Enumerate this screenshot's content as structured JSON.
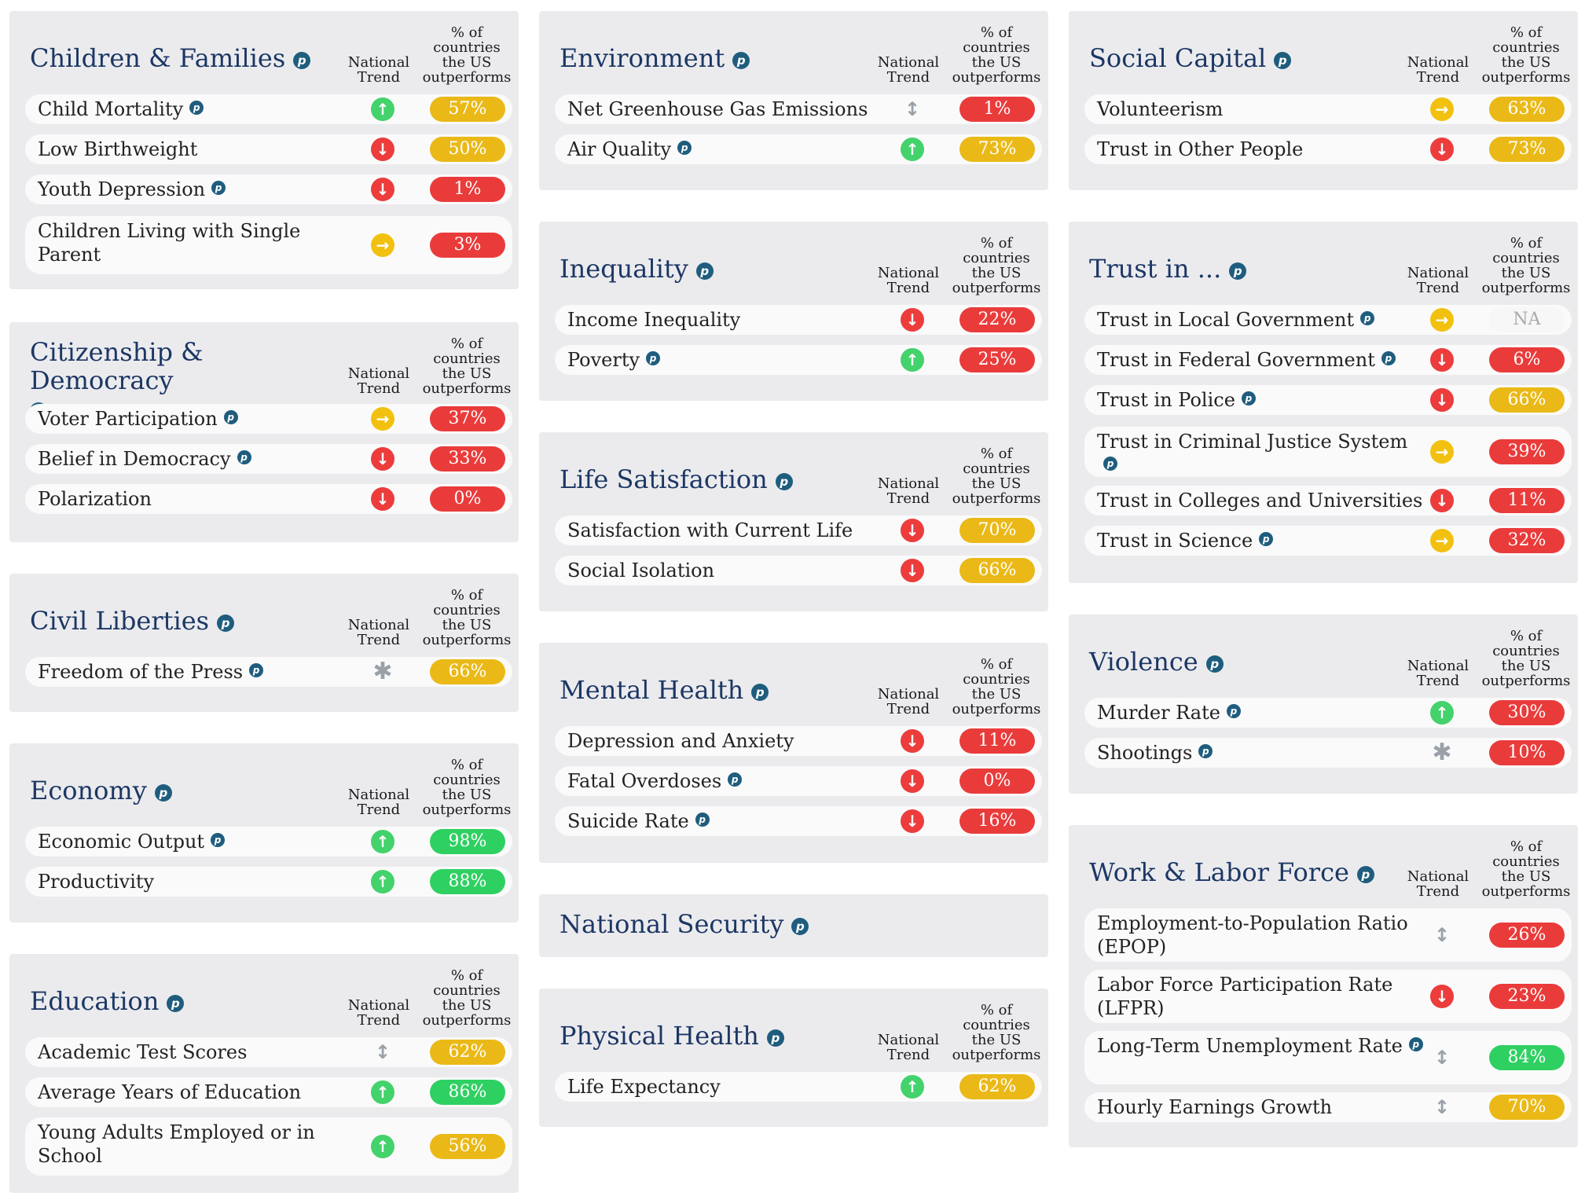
{
  "header": {
    "trend": "National Trend",
    "pct": "% of countries the US outperforms"
  },
  "cards": {
    "children": {
      "title": "Children & Families",
      "rows": [
        {
          "label": "Child Mortality",
          "trend": "up",
          "value": "57%",
          "color": "yellow",
          "p": true
        },
        {
          "label": "Low Birthweight",
          "trend": "down",
          "value": "50%",
          "color": "yellow",
          "p": false
        },
        {
          "label": "Youth Depression",
          "trend": "down",
          "value": "1%",
          "color": "red",
          "p": true
        },
        {
          "label": "Children Living with Single Parent",
          "trend": "right",
          "value": "3%",
          "color": "red",
          "p": false
        }
      ]
    },
    "citizenship": {
      "title": "Citizenship & Democracy",
      "rows": [
        {
          "label": "Voter Participation",
          "trend": "right",
          "value": "37%",
          "color": "red",
          "p": true
        },
        {
          "label": "Belief in Democracy",
          "trend": "down",
          "value": "33%",
          "color": "red",
          "p": true
        },
        {
          "label": "Polarization",
          "trend": "down",
          "value": "0%",
          "color": "red",
          "p": false
        }
      ]
    },
    "civil": {
      "title": "Civil Liberties",
      "rows": [
        {
          "label": "Freedom of the Press",
          "trend": "star",
          "value": "66%",
          "color": "yellow",
          "p": true
        }
      ]
    },
    "economy": {
      "title": "Economy",
      "rows": [
        {
          "label": "Economic Output",
          "trend": "up",
          "value": "98%",
          "color": "green",
          "p": true
        },
        {
          "label": "Productivity",
          "trend": "up",
          "value": "88%",
          "color": "green",
          "p": false
        }
      ]
    },
    "education": {
      "title": "Education",
      "rows": [
        {
          "label": "Academic Test Scores",
          "trend": "both",
          "value": "62%",
          "color": "yellow",
          "p": false
        },
        {
          "label": "Average Years of Education",
          "trend": "up",
          "value": "86%",
          "color": "green",
          "p": false
        },
        {
          "label": "Young Adults Employed or in School",
          "trend": "up",
          "value": "56%",
          "color": "yellow",
          "p": false
        }
      ]
    },
    "environment": {
      "title": "Environment",
      "rows": [
        {
          "label": "Net Greenhouse Gas Emissions",
          "trend": "both",
          "value": "1%",
          "color": "red",
          "p": false
        },
        {
          "label": "Air Quality",
          "trend": "up",
          "value": "73%",
          "color": "yellow",
          "p": true
        }
      ]
    },
    "inequality": {
      "title": "Inequality",
      "rows": [
        {
          "label": "Income Inequality",
          "trend": "down",
          "value": "22%",
          "color": "red",
          "p": false
        },
        {
          "label": "Poverty",
          "trend": "up",
          "value": "25%",
          "color": "red",
          "p": true
        }
      ]
    },
    "life": {
      "title": "Life Satisfaction",
      "rows": [
        {
          "label": "Satisfaction with Current Life",
          "trend": "down",
          "value": "70%",
          "color": "yellow",
          "p": false
        },
        {
          "label": "Social Isolation",
          "trend": "down",
          "value": "66%",
          "color": "yellow",
          "p": false
        }
      ]
    },
    "mental": {
      "title": "Mental Health",
      "rows": [
        {
          "label": "Depression and Anxiety",
          "trend": "down",
          "value": "11%",
          "color": "red",
          "p": false
        },
        {
          "label": "Fatal Overdoses",
          "trend": "down",
          "value": "0%",
          "color": "red",
          "p": true
        },
        {
          "label": "Suicide Rate",
          "trend": "down",
          "value": "16%",
          "color": "red",
          "p": true
        }
      ]
    },
    "security": {
      "title": "National Security"
    },
    "physical": {
      "title": "Physical Health",
      "rows": [
        {
          "label": "Life Expectancy",
          "trend": "up",
          "value": "62%",
          "color": "yellow",
          "p": false
        }
      ]
    },
    "social": {
      "title": "Social Capital",
      "rows": [
        {
          "label": "Volunteerism",
          "trend": "right",
          "value": "63%",
          "color": "yellow",
          "p": false
        },
        {
          "label": "Trust in Other People",
          "trend": "down",
          "value": "73%",
          "color": "yellow",
          "p": false
        }
      ]
    },
    "trust": {
      "title": "Trust in ...",
      "rows": [
        {
          "label": "Trust in Local Government",
          "trend": "right",
          "value": "NA",
          "color": "na",
          "p": true
        },
        {
          "label": "Trust in Federal Government",
          "trend": "down",
          "value": "6%",
          "color": "red",
          "p": true
        },
        {
          "label": "Trust in Police",
          "trend": "down",
          "value": "66%",
          "color": "yellow",
          "p": true
        },
        {
          "label": "Trust in Criminal Justice System",
          "trend": "right",
          "value": "39%",
          "color": "red",
          "p": true
        },
        {
          "label": "Trust in Colleges and Universities",
          "trend": "down",
          "value": "11%",
          "color": "red",
          "p": false
        },
        {
          "label": "Trust in Science",
          "trend": "right",
          "value": "32%",
          "color": "red",
          "p": true
        }
      ]
    },
    "violence": {
      "title": "Violence",
      "rows": [
        {
          "label": "Murder Rate",
          "trend": "up",
          "value": "30%",
          "color": "red",
          "p": true
        },
        {
          "label": "Shootings",
          "trend": "star",
          "value": "10%",
          "color": "red",
          "p": true
        }
      ]
    },
    "work": {
      "title": "Work & Labor Force",
      "rows": [
        {
          "label": "Employment-to-Population Ratio (EPOP)",
          "trend": "both",
          "value": "26%",
          "color": "red",
          "p": false
        },
        {
          "label": "Labor Force Participation Rate (LFPR)",
          "trend": "down",
          "value": "23%",
          "color": "red",
          "p": false
        },
        {
          "label": "Long-Term Unemployment Rate",
          "trend": "both",
          "value": "84%",
          "color": "green",
          "p": true
        },
        {
          "label": "Hourly Earnings Growth",
          "trend": "both",
          "value": "70%",
          "color": "yellow",
          "p": false
        }
      ]
    }
  },
  "icons": {
    "up": "arrow-up-icon",
    "down": "arrow-down-icon",
    "right": "arrow-right-icon",
    "both": "up-down-arrow-icon",
    "star": "asterisk-icon",
    "p": "info-p-icon"
  },
  "p_glyph": "p",
  "trend_glyphs": {
    "up": "↑",
    "down": "↓",
    "right": "→",
    "both": "↕",
    "star": "✱"
  }
}
